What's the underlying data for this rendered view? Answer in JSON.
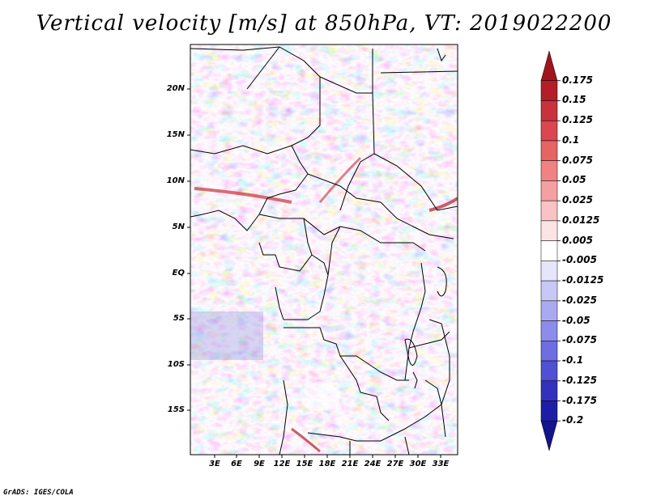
{
  "title": "Vertical velocity [m/s] at 850hPa, VT: 2019022200",
  "credit": "GrADS: IGES/COLA",
  "map": {
    "lat_labels": [
      "20N",
      "15N",
      "10N",
      "5N",
      "EQ",
      "5S",
      "10S",
      "15S"
    ],
    "lon_labels": [
      "3E",
      "6E",
      "9E",
      "12E",
      "15E",
      "18E",
      "21E",
      "24E",
      "27E",
      "30E",
      "33E"
    ],
    "field": "vertical velocity",
    "units": "m/s",
    "level": "850hPa"
  },
  "colorbar": {
    "labels": [
      "0.175",
      "0.15",
      "0.125",
      "0.1",
      "0.075",
      "0.05",
      "0.025",
      "0.0125",
      "0.005",
      "-0.005",
      "-0.0125",
      "-0.025",
      "-0.05",
      "-0.075",
      "-0.1",
      "-0.125",
      "-0.175",
      "-0.2"
    ],
    "colors": [
      "#a0141e",
      "#b41e28",
      "#c8323c",
      "#dc4650",
      "#e66464",
      "#f08282",
      "#f5a0a0",
      "#fac3c3",
      "#fde4e4",
      "#ffffff",
      "#e6e6fa",
      "#c8c8f5",
      "#aaaaf0",
      "#8c8ceb",
      "#6e6ee1",
      "#5050d2",
      "#3232be",
      "#1e1ea5",
      "#14148c"
    ]
  }
}
